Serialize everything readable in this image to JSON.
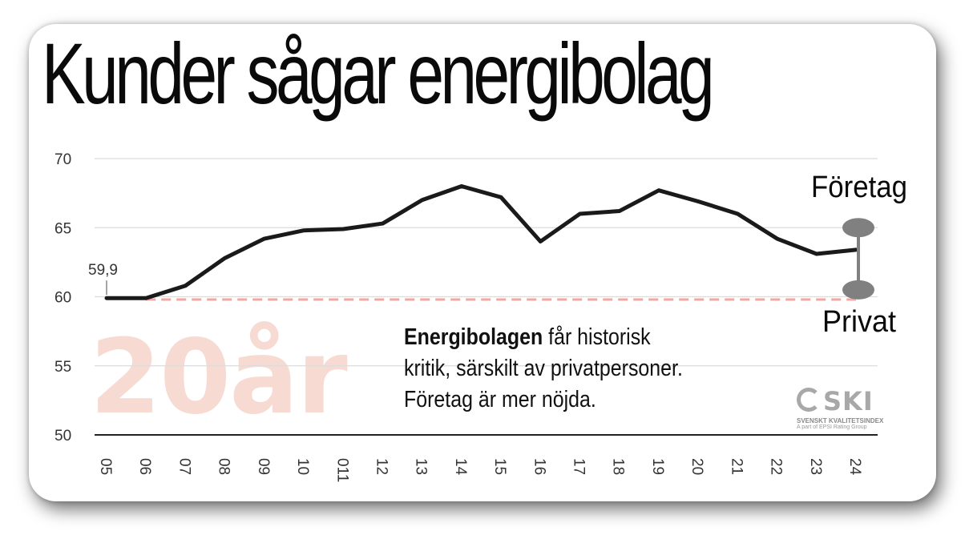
{
  "title": "Kunder sågar energibolag",
  "watermark": "20år",
  "annotation": {
    "bold": "Energibolagen",
    "line1_rest": " får historisk",
    "line2": "kritik, särskilt av privatpersoner.",
    "line3": "Företag är mer nöjda."
  },
  "logo": {
    "mark": "SKI",
    "name": "SVENSKT KVALITETSINDEX",
    "sub": "A part of EPSI Rating Group"
  },
  "colors": {
    "line": "#1a1a1a",
    "privat_dashed": "#f2a8a2",
    "marker": "#808080",
    "watermark": "#f7dbd3"
  },
  "chart_data": {
    "type": "line",
    "categories": [
      "05",
      "06",
      "07",
      "08",
      "09",
      "10",
      "011",
      "12",
      "13",
      "14",
      "15",
      "16",
      "17",
      "18",
      "19",
      "20",
      "21",
      "22",
      "23",
      "24"
    ],
    "series": [
      {
        "name": "Företag",
        "values": [
          59.9,
          59.9,
          60.8,
          62.8,
          64.2,
          64.8,
          64.9,
          65.3,
          67.0,
          68.0,
          67.2,
          64.0,
          66.0,
          66.2,
          67.7,
          66.9,
          66.0,
          64.2,
          63.1,
          63.4
        ]
      },
      {
        "name": "Privat",
        "values": [
          null,
          59.8,
          59.8,
          59.8,
          59.8,
          59.8,
          59.8,
          59.8,
          59.8,
          59.8,
          59.8,
          59.8,
          59.8,
          59.8,
          59.8,
          59.8,
          59.8,
          59.8,
          59.8,
          59.8
        ]
      }
    ],
    "yticks": [
      50,
      55,
      60,
      65,
      70
    ],
    "ylim": [
      50,
      70
    ],
    "grid": true,
    "data_label": "59,9",
    "end_markers": {
      "foretag_marker": 65.0,
      "privat_marker": 60.5
    }
  }
}
